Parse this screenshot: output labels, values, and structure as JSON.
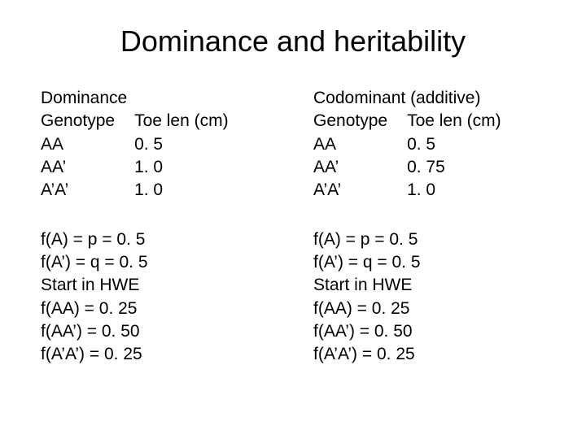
{
  "title": "Dominance and heritability",
  "left": {
    "heading": "Dominance",
    "col1": "Genotype",
    "col2": "Toe len (cm)",
    "rows": [
      {
        "g": "AA",
        "v": "0. 5"
      },
      {
        "g": "AA’",
        "v": "1. 0"
      },
      {
        "g": "A’A’",
        "v": "1. 0"
      }
    ],
    "freq": [
      "f(A) = p = 0. 5",
      "f(A’) = q = 0. 5",
      "Start in HWE",
      "f(AA) = 0. 25",
      "f(AA’) = 0. 50",
      "f(A’A’) = 0. 25"
    ]
  },
  "right": {
    "heading": "Codominant (additive)",
    "col1": "Genotype",
    "col2": "Toe len (cm)",
    "rows": [
      {
        "g": "AA",
        "v": "0. 5"
      },
      {
        "g": "AA’",
        "v": "0. 75"
      },
      {
        "g": "A’A’",
        "v": "1. 0"
      }
    ],
    "freq": [
      "f(A) = p = 0. 5",
      "f(A’) = q = 0. 5",
      "Start in HWE",
      "f(AA) = 0. 25",
      "f(AA’) = 0. 50",
      "f(A’A’) = 0. 25"
    ]
  }
}
